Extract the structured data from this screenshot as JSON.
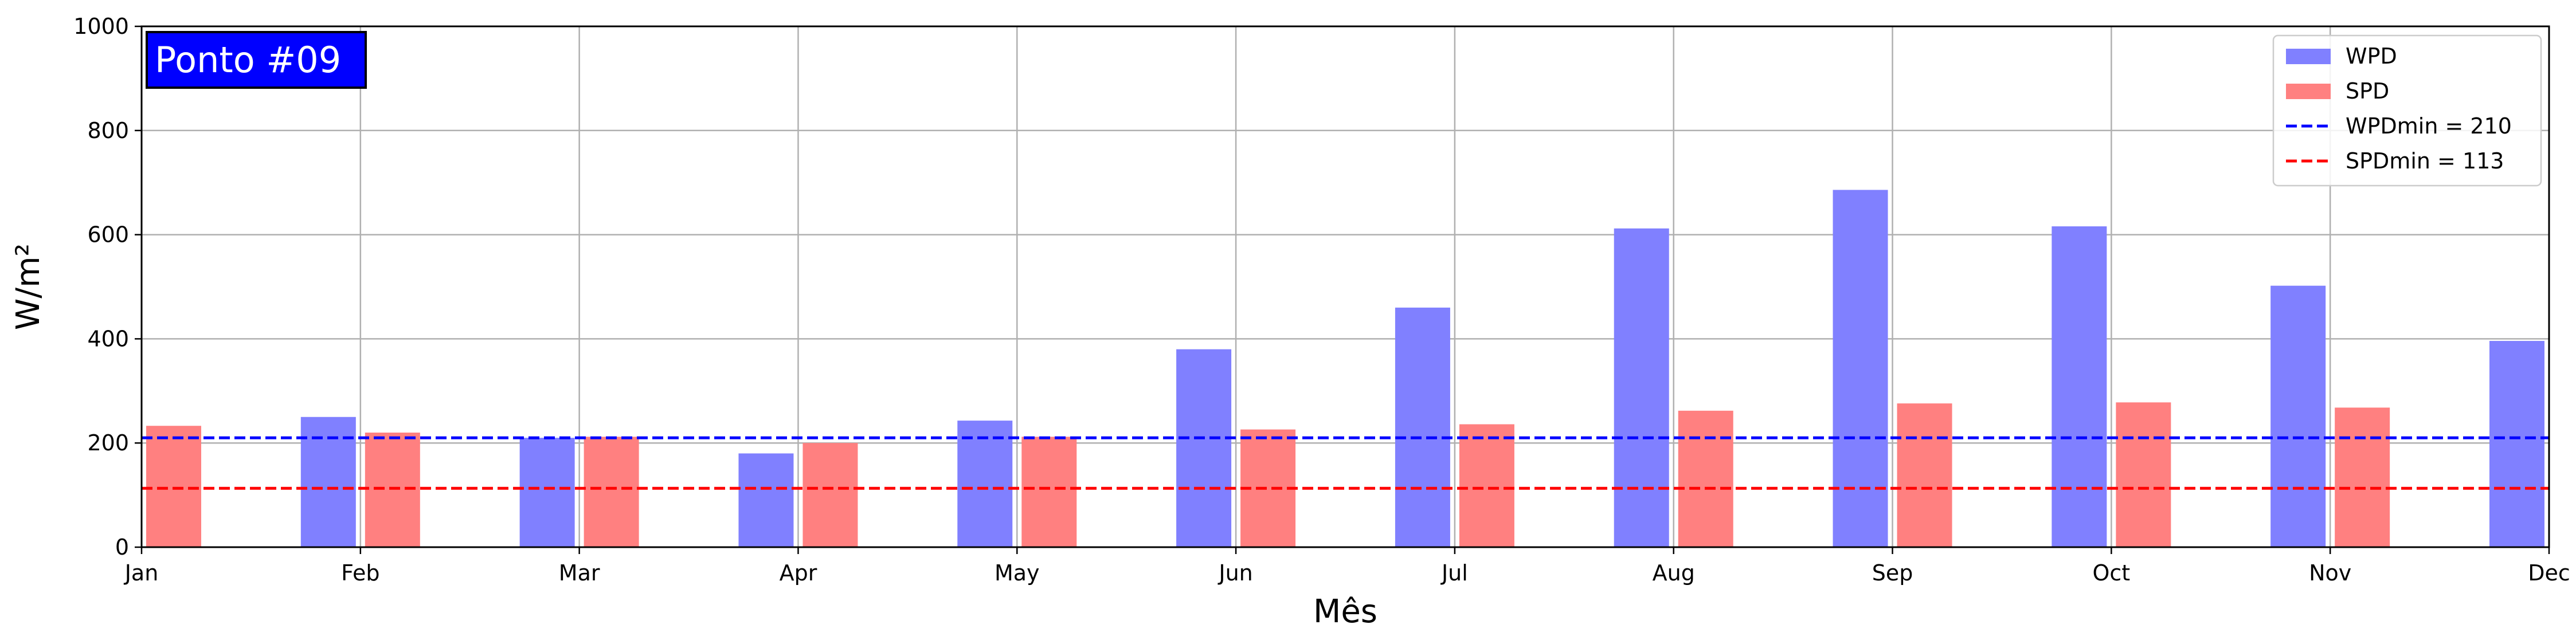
{
  "chart_data": {
    "type": "bar",
    "title": "",
    "badge": "Ponto #09",
    "xlabel": "Mês",
    "ylabel": "W/m²",
    "ylim": [
      0,
      1000
    ],
    "yticks": [
      0,
      200,
      400,
      600,
      800,
      1000
    ],
    "categories": [
      "Jan",
      "Feb",
      "Mar",
      "Apr",
      "May",
      "Jun",
      "Jul",
      "Aug",
      "Sep",
      "Oct",
      "Nov",
      "Dec"
    ],
    "grid": true,
    "legend_position": "top-right",
    "series": [
      {
        "name": "WPD",
        "color": "#8080ff",
        "values": [
          null,
          250,
          210,
          180,
          243,
          380,
          460,
          612,
          686,
          616,
          502,
          396
        ]
      },
      {
        "name": "SPD",
        "color": "#ff8080",
        "values": [
          233,
          220,
          212,
          200,
          212,
          226,
          236,
          262,
          276,
          278,
          268,
          null
        ]
      }
    ],
    "reference_lines": [
      {
        "label": "WPDmin = 210",
        "value": 210,
        "color": "#0000ff",
        "style": "dashed"
      },
      {
        "label": "SPDmin = 113",
        "value": 113,
        "color": "#ff0000",
        "style": "dashed"
      }
    ]
  }
}
